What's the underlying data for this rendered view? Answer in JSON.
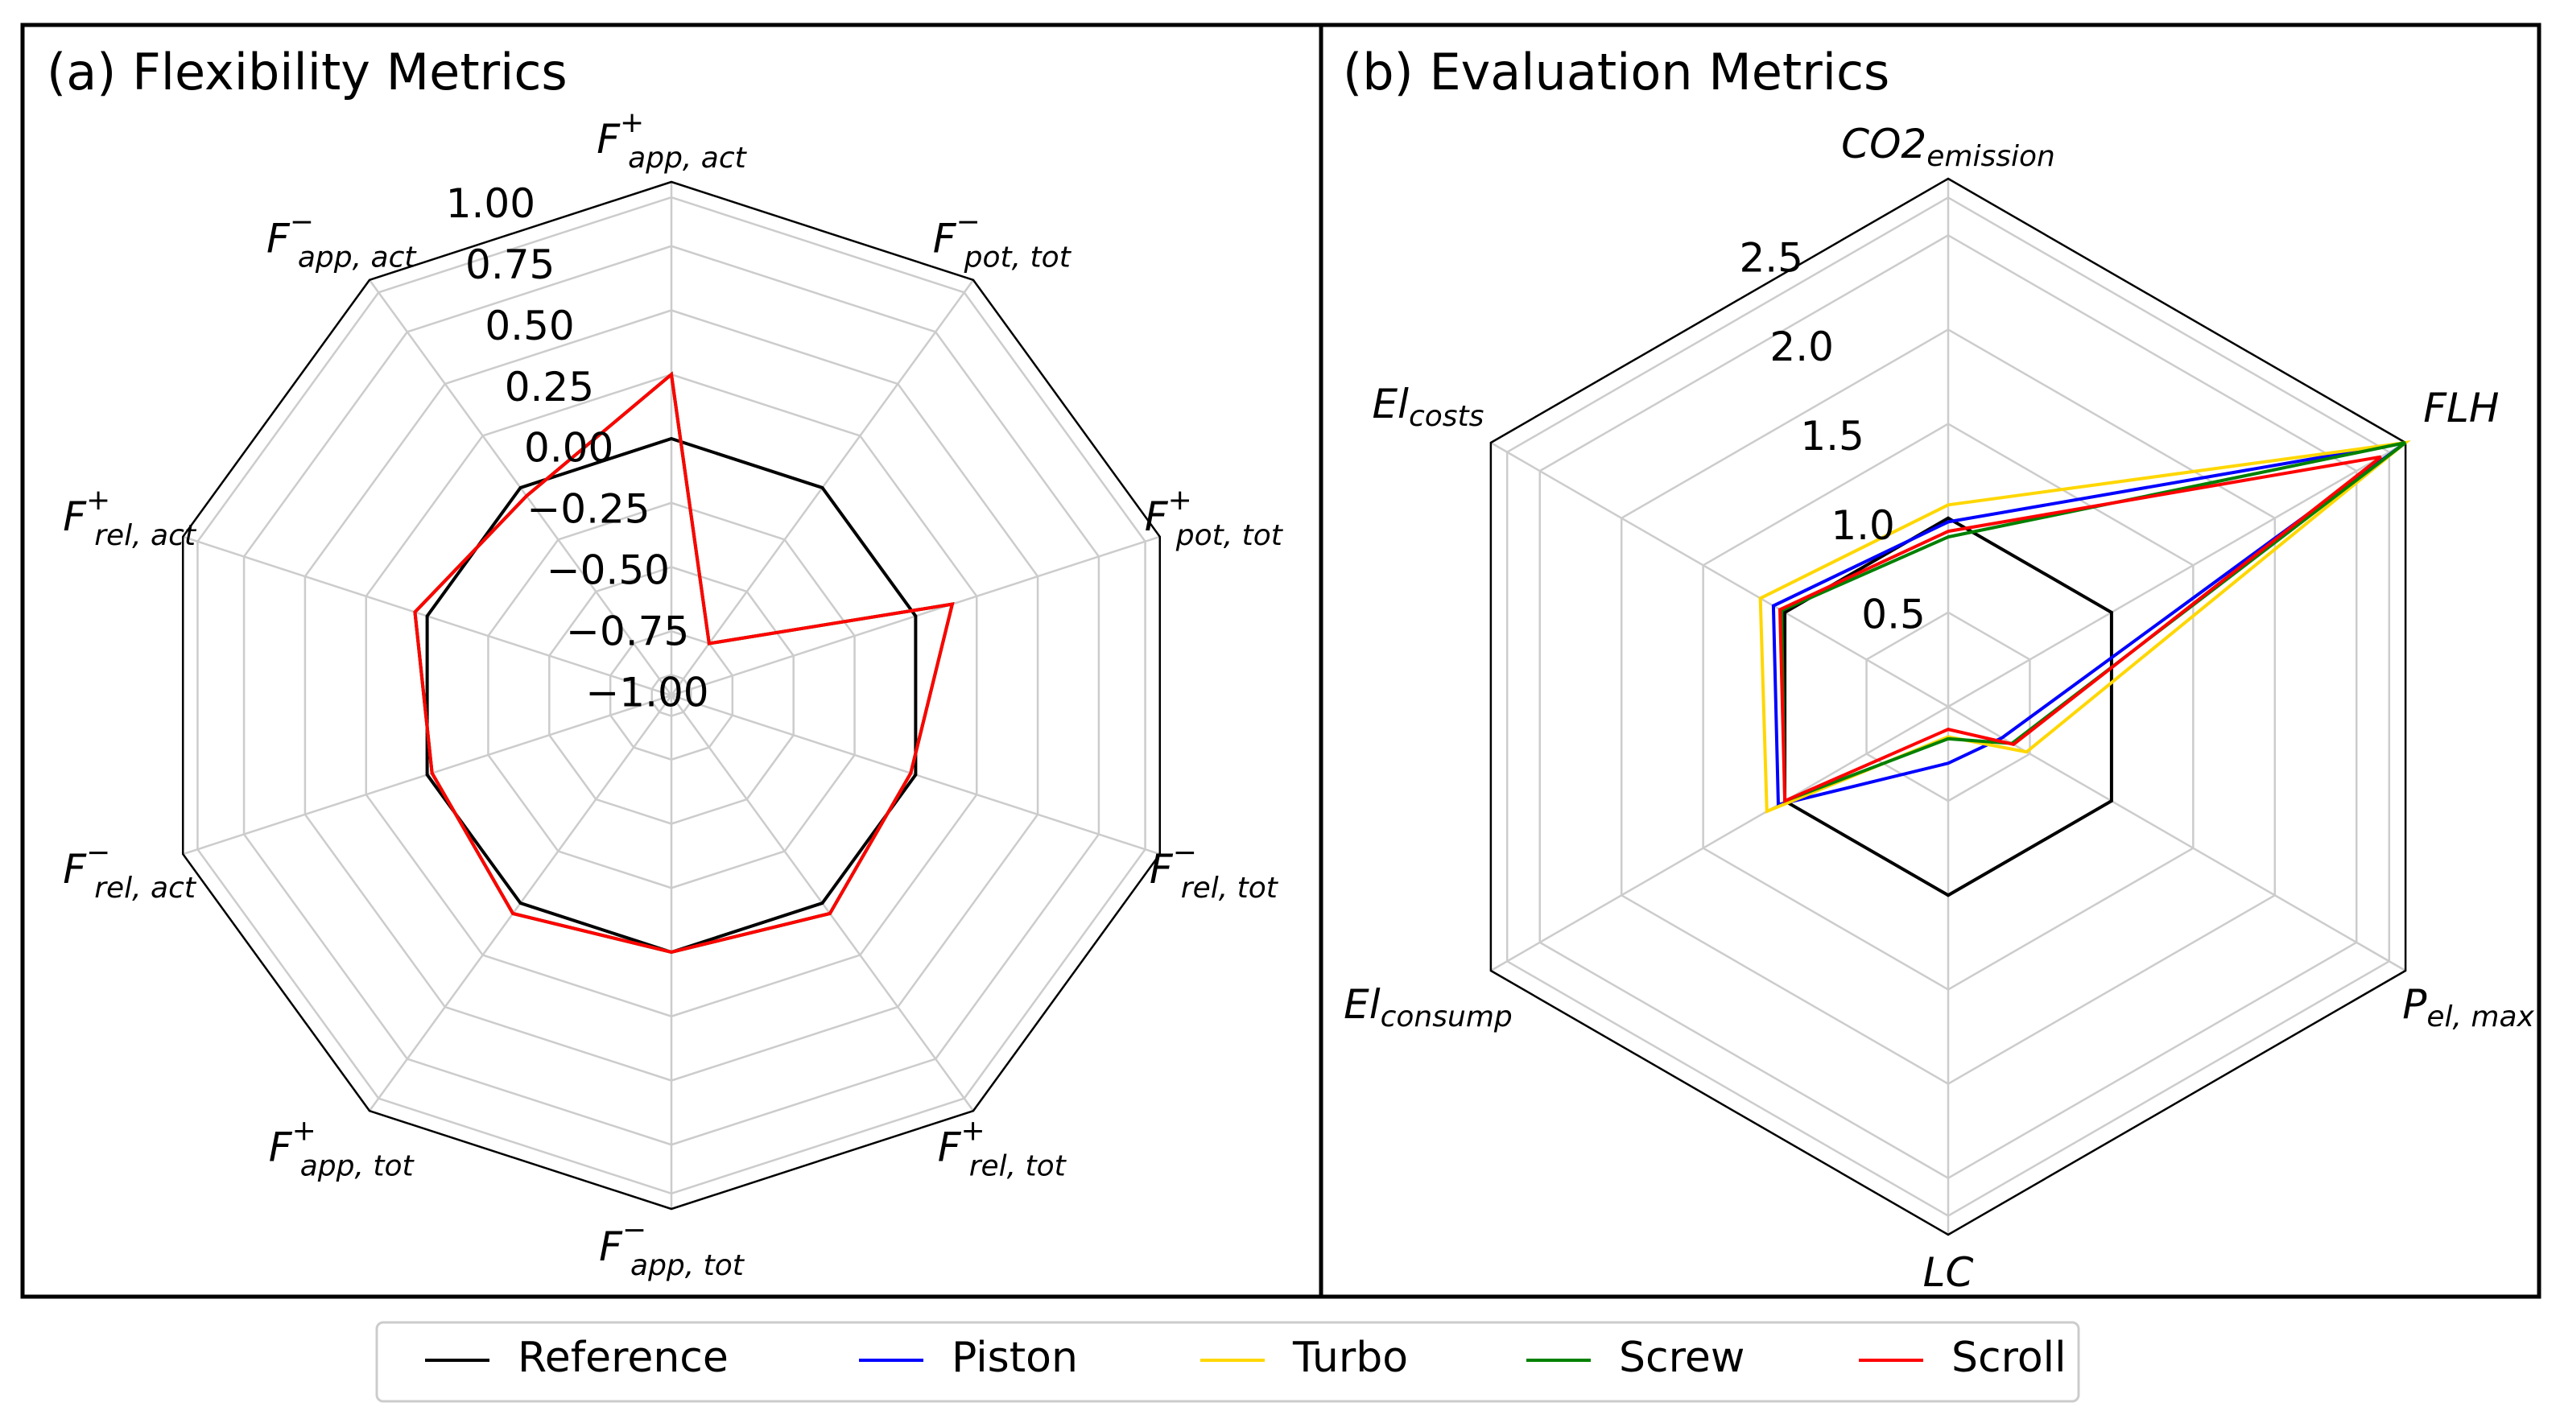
{
  "chart_data": [
    {
      "type": "radar",
      "title": "(a) Flexibility Metrics",
      "rrange": [
        -1.0,
        1.0
      ],
      "rticks": [
        1.0,
        0.75,
        0.5,
        0.25,
        0.0,
        -0.25,
        -0.5,
        -0.75,
        -1.0
      ],
      "rtick_labels": [
        "1.00",
        "0.75",
        "0.50",
        "0.25",
        "0.00",
        "−0.25",
        "−0.50",
        "−0.75",
        "−1.00"
      ],
      "grid": true,
      "axes": [
        {
          "base": "F",
          "sup": "+",
          "sub": "app, act"
        },
        {
          "base": "F",
          "sup": "−",
          "sub": "pot, tot"
        },
        {
          "base": "F",
          "sup": "+",
          "sub": "pot, tot"
        },
        {
          "base": "F",
          "sup": "−",
          "sub": "rel, tot"
        },
        {
          "base": "F",
          "sup": "+",
          "sub": "rel, tot"
        },
        {
          "base": "F",
          "sup": "−",
          "sub": "app, tot"
        },
        {
          "base": "F",
          "sup": "+",
          "sub": "app, tot"
        },
        {
          "base": "F",
          "sup": "−",
          "sub": "rel, act"
        },
        {
          "base": "F",
          "sup": "+",
          "sub": "rel, act"
        },
        {
          "base": "F",
          "sup": "−",
          "sub": "app, act"
        }
      ],
      "series": [
        {
          "name": "Reference",
          "color": "#000000",
          "values": [
            0.0,
            0.0,
            0.0,
            0.0,
            0.0,
            0.0,
            0.0,
            0.0,
            0.0,
            0.0
          ]
        },
        {
          "name": "Piston",
          "color": "#0000ff",
          "values": [
            0.25,
            -0.75,
            0.15,
            -0.02,
            0.05,
            0.0,
            0.05,
            -0.02,
            0.05,
            -0.04
          ]
        },
        {
          "name": "Turbo",
          "color": "#ffd700",
          "values": [
            0.25,
            -0.75,
            0.15,
            -0.02,
            0.05,
            0.0,
            0.05,
            -0.02,
            0.05,
            -0.04
          ]
        },
        {
          "name": "Screw",
          "color": "#008000",
          "values": [
            0.25,
            -0.75,
            0.15,
            -0.02,
            0.05,
            0.0,
            0.05,
            -0.02,
            0.05,
            -0.04
          ]
        },
        {
          "name": "Scroll",
          "color": "#ff0000",
          "values": [
            0.25,
            -0.75,
            0.15,
            -0.02,
            0.05,
            0.0,
            0.05,
            -0.02,
            0.05,
            -0.04
          ]
        }
      ]
    },
    {
      "type": "radar",
      "title": "(b) Evaluation Metrics",
      "rrange": [
        0,
        2.8
      ],
      "rticks": [
        0.5,
        1.0,
        1.5,
        2.0,
        2.5
      ],
      "rtick_labels": [
        "0.5",
        "1.0",
        "1.5",
        "2.0",
        "2.5"
      ],
      "grid": true,
      "axes": [
        {
          "base": "CO2",
          "sub": "emission"
        },
        {
          "base": "FLH",
          "sub": ""
        },
        {
          "base": "P",
          "sub": "el, max"
        },
        {
          "base": "LC",
          "sub": ""
        },
        {
          "base": "El",
          "sub": "consump"
        },
        {
          "base": "El",
          "sub": "costs"
        }
      ],
      "series": [
        {
          "name": "Reference",
          "color": "#000000",
          "values": [
            1.0,
            1.0,
            1.0,
            1.0,
            1.0,
            1.0
          ]
        },
        {
          "name": "Piston",
          "color": "#0000ff",
          "values": [
            0.98,
            2.8,
            0.33,
            0.3,
            1.04,
            1.07
          ]
        },
        {
          "name": "Turbo",
          "color": "#ffd700",
          "values": [
            1.07,
            2.8,
            0.48,
            0.16,
            1.11,
            1.15
          ]
        },
        {
          "name": "Screw",
          "color": "#008000",
          "values": [
            0.9,
            2.8,
            0.39,
            0.17,
            1.0,
            1.02
          ]
        },
        {
          "name": "Scroll",
          "color": "#ff0000",
          "values": [
            0.93,
            2.65,
            0.4,
            0.12,
            1.0,
            1.03
          ]
        }
      ]
    }
  ],
  "legend": {
    "placement": "bottom-center",
    "items": [
      {
        "label": "Reference",
        "color": "#000000"
      },
      {
        "label": "Piston",
        "color": "#0000ff"
      },
      {
        "label": "Turbo",
        "color": "#ffd700"
      },
      {
        "label": "Screw",
        "color": "#008000"
      },
      {
        "label": "Scroll",
        "color": "#ff0000"
      }
    ]
  }
}
